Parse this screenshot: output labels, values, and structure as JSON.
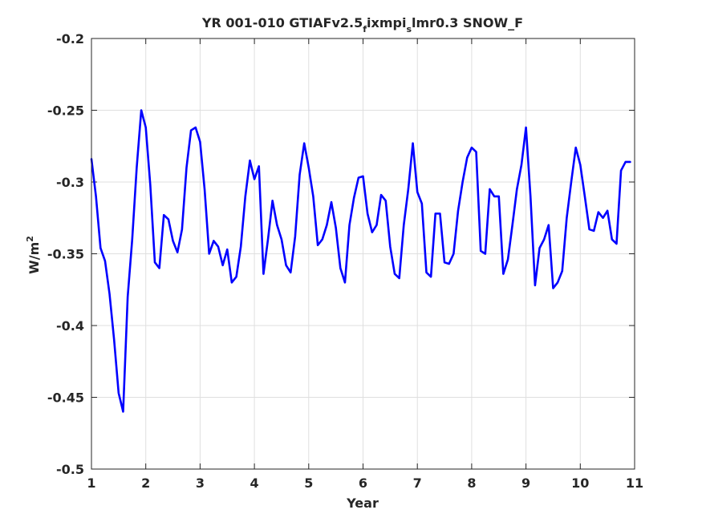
{
  "chart_data": {
    "type": "line",
    "title_parts": {
      "a": "YR 001-010 GTIAFv2.5",
      "b": "f",
      "c": "ixmpi",
      "d": "s",
      "e": "lmr0.3 SNOW_F"
    },
    "xlabel": "Year",
    "ylabel_base": "W/m",
    "ylabel_sup": "2",
    "xlim": [
      1,
      11
    ],
    "ylim": [
      -0.5,
      -0.2
    ],
    "xticks": [
      "1",
      "2",
      "3",
      "4",
      "5",
      "6",
      "7",
      "8",
      "9",
      "10",
      "11"
    ],
    "yticks": [
      "-0.5",
      "-0.45",
      "-0.4",
      "-0.35",
      "-0.3",
      "-0.25",
      "-0.2"
    ],
    "grid": true,
    "line_color": "#0000ff",
    "series": [
      {
        "x": [
          1.0,
          1.083,
          1.167,
          1.25,
          1.333,
          1.417,
          1.5,
          1.583,
          1.667,
          1.75,
          1.833,
          1.917,
          2.0,
          2.083,
          2.167,
          2.25,
          2.333,
          2.417,
          2.5,
          2.583,
          2.667,
          2.75,
          2.833,
          2.917,
          3.0,
          3.083,
          3.167,
          3.25,
          3.333,
          3.417,
          3.5,
          3.583,
          3.667,
          3.75,
          3.833,
          3.917,
          4.0,
          4.083,
          4.167,
          4.25,
          4.333,
          4.417,
          4.5,
          4.583,
          4.667,
          4.75,
          4.833,
          4.917,
          5.0,
          5.083,
          5.167,
          5.25,
          5.333,
          5.417,
          5.5,
          5.583,
          5.667,
          5.75,
          5.833,
          5.917,
          6.0,
          6.083,
          6.167,
          6.25,
          6.333,
          6.417,
          6.5,
          6.583,
          6.667,
          6.75,
          6.833,
          6.917,
          7.0,
          7.083,
          7.167,
          7.25,
          7.333,
          7.417,
          7.5,
          7.583,
          7.667,
          7.75,
          7.833,
          7.917,
          8.0,
          8.083,
          8.167,
          8.25,
          8.333,
          8.417,
          8.5,
          8.583,
          8.667,
          8.75,
          8.833,
          8.917,
          9.0,
          9.083,
          9.167,
          9.25,
          9.333,
          9.417,
          9.5,
          9.583,
          9.667,
          9.75,
          9.833,
          9.917,
          10.0,
          10.083,
          10.167,
          10.25,
          10.333,
          10.417,
          10.5,
          10.583,
          10.667,
          10.75,
          10.833,
          10.917
        ],
        "y": [
          -0.284,
          -0.31,
          -0.346,
          -0.355,
          -0.378,
          -0.41,
          -0.447,
          -0.46,
          -0.38,
          -0.34,
          -0.29,
          -0.25,
          -0.262,
          -0.302,
          -0.356,
          -0.36,
          -0.323,
          -0.326,
          -0.341,
          -0.349,
          -0.333,
          -0.29,
          -0.264,
          -0.262,
          -0.272,
          -0.305,
          -0.35,
          -0.341,
          -0.345,
          -0.358,
          -0.347,
          -0.37,
          -0.366,
          -0.345,
          -0.31,
          -0.285,
          -0.298,
          -0.289,
          -0.364,
          -0.34,
          -0.313,
          -0.33,
          -0.34,
          -0.358,
          -0.363,
          -0.338,
          -0.295,
          -0.273,
          -0.29,
          -0.31,
          -0.344,
          -0.34,
          -0.33,
          -0.314,
          -0.332,
          -0.36,
          -0.37,
          -0.33,
          -0.311,
          -0.297,
          -0.296,
          -0.322,
          -0.335,
          -0.33,
          -0.309,
          -0.313,
          -0.345,
          -0.364,
          -0.367,
          -0.33,
          -0.305,
          -0.273,
          -0.307,
          -0.315,
          -0.363,
          -0.366,
          -0.322,
          -0.322,
          -0.356,
          -0.357,
          -0.35,
          -0.32,
          -0.3,
          -0.283,
          -0.276,
          -0.279,
          -0.348,
          -0.35,
          -0.305,
          -0.31,
          -0.31,
          -0.364,
          -0.354,
          -0.33,
          -0.305,
          -0.288,
          -0.262,
          -0.31,
          -0.372,
          -0.346,
          -0.34,
          -0.33,
          -0.374,
          -0.37,
          -0.362,
          -0.325,
          -0.3,
          -0.276,
          -0.288,
          -0.31,
          -0.333,
          -0.334,
          -0.321,
          -0.325,
          -0.32,
          -0.34,
          -0.343,
          -0.292,
          -0.286,
          -0.286
        ]
      }
    ]
  }
}
